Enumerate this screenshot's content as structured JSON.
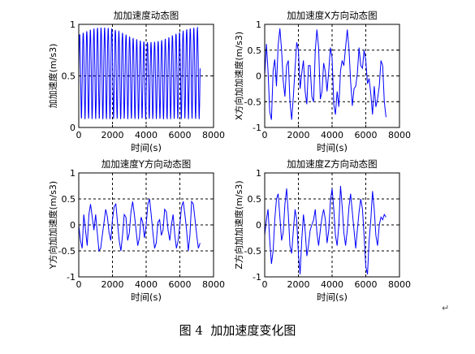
{
  "figure_caption": "图 4  加加速度变化图",
  "paragraph_mark": "↵",
  "chart_data": [
    {
      "type": "line",
      "title": "加加速度动态图",
      "xlabel": "时间(s)",
      "ylabel": "加加速度(m/s3)",
      "xlim": [
        0,
        8000
      ],
      "ylim": [
        0,
        1
      ],
      "xticks": [
        0,
        2000,
        4000,
        6000,
        8000
      ],
      "yticks": [
        0,
        0.5,
        1
      ],
      "ytick_labels": [
        "0",
        "0.5",
        "1"
      ],
      "grid": true,
      "color": "#0000ff",
      "x_range": [
        0,
        7200
      ],
      "n_points": 700,
      "approx_cycles": 34,
      "y_min": 0.08,
      "y_max": 0.97
    },
    {
      "type": "line",
      "title": "加加速度X方向动态图",
      "xlabel": "时间(s)",
      "ylabel": "X方向加加速度(m/s3)",
      "xlim": [
        0,
        8000
      ],
      "ylim": [
        -1,
        1
      ],
      "xticks": [
        0,
        2000,
        4000,
        6000,
        8000
      ],
      "yticks": [
        -1,
        -0.5,
        0,
        0.5,
        1
      ],
      "ytick_labels": [
        "-1",
        "-0.5",
        "0",
        "0.5",
        "1"
      ],
      "grid": true,
      "color": "#0000ff",
      "x": [
        0,
        100,
        200,
        300,
        400,
        500,
        600,
        700,
        800,
        900,
        1000,
        1100,
        1200,
        1300,
        1400,
        1500,
        1600,
        1700,
        1800,
        1900,
        2000,
        2100,
        2200,
        2300,
        2400,
        2500,
        2600,
        2700,
        2800,
        2900,
        3000,
        3100,
        3200,
        3300,
        3400,
        3500,
        3600,
        3700,
        3800,
        3900,
        4000,
        4100,
        4200,
        4300,
        4400,
        4500,
        4600,
        4700,
        4800,
        4900,
        5000,
        5100,
        5200,
        5300,
        5400,
        5500,
        5600,
        5700,
        5800,
        5900,
        6000,
        6100,
        6200,
        6300,
        6400,
        6500,
        6600,
        6700,
        6800,
        6900,
        7000,
        7100,
        7200
      ],
      "y": [
        0,
        0.62,
        0.1,
        -0.7,
        -0.85,
        0.1,
        0.32,
        -0.2,
        0.6,
        0.92,
        0.5,
        -0.1,
        -0.4,
        0.2,
        0.3,
        -0.5,
        -0.85,
        -0.4,
        0.15,
        0.65,
        0.5,
        -0.25,
        0.05,
        0.3,
        -0.3,
        -0.55,
        0.2,
        0.2,
        -0.4,
        -0.5,
        0.5,
        0.9,
        0.55,
        -0.45,
        -0.3,
        0.25,
        0.08,
        -0.3,
        0.1,
        0.55,
        0.35,
        -0.55,
        -0.75,
        -0.3,
        -0.6,
        0.1,
        0.3,
        0.2,
        0.55,
        0.9,
        0.52,
        -0.1,
        -0.58,
        -0.25,
        -0.2,
        0.05,
        0.55,
        0.2,
        0.15,
        0.5,
        0.3,
        -0.15,
        -0.05,
        -0.35,
        -0.75,
        -0.2,
        -0.6,
        -0.45,
        -0.2,
        0.3,
        0.2,
        -0.5,
        -0.8
      ]
    },
    {
      "type": "line",
      "title": "加加速度Y方向动态图",
      "xlabel": "时间(s)",
      "ylabel": "Y方向加加速度(m/s3)",
      "xlim": [
        0,
        8000
      ],
      "ylim": [
        -1,
        1
      ],
      "xticks": [
        0,
        2000,
        4000,
        6000,
        8000
      ],
      "yticks": [
        -1,
        -0.5,
        0,
        0.5,
        1
      ],
      "ytick_labels": [
        "-1",
        "-0.5",
        "0",
        "0.5",
        "1"
      ],
      "grid": true,
      "color": "#0000ff",
      "x": [
        0,
        100,
        200,
        300,
        400,
        500,
        600,
        700,
        800,
        900,
        1000,
        1100,
        1200,
        1300,
        1400,
        1500,
        1600,
        1700,
        1800,
        1900,
        2000,
        2100,
        2200,
        2300,
        2400,
        2500,
        2600,
        2700,
        2800,
        2900,
        3000,
        3100,
        3200,
        3300,
        3400,
        3500,
        3600,
        3700,
        3800,
        3900,
        4000,
        4100,
        4200,
        4300,
        4400,
        4500,
        4600,
        4700,
        4800,
        4900,
        5000,
        5100,
        5200,
        5300,
        5400,
        5500,
        5600,
        5700,
        5800,
        5900,
        6000,
        6100,
        6200,
        6300,
        6400,
        6500,
        6600,
        6700,
        6800,
        6900,
        7000,
        7100,
        7200
      ],
      "y": [
        0,
        -0.3,
        -0.45,
        0.2,
        -0.1,
        -0.4,
        0.2,
        0.4,
        0.15,
        -0.1,
        0.2,
        -0.15,
        -0.5,
        -0.45,
        -0.2,
        0.05,
        0.3,
        0.15,
        -0.15,
        -0.3,
        0.1,
        0.35,
        0.4,
        0.05,
        -0.3,
        -0.5,
        -0.2,
        0.2,
        0.15,
        -0.3,
        -0.15,
        0.25,
        0.45,
        0.2,
        -0.1,
        -0.4,
        -0.25,
        0.15,
        0.05,
        -0.25,
        0.0,
        0.4,
        0.5,
        0.2,
        -0.15,
        -0.45,
        -0.35,
        0.05,
        0.1,
        -0.2,
        -0.1,
        0.3,
        0.25,
        -0.1,
        -0.3,
        0.0,
        0.2,
        -0.2,
        -0.45,
        -0.3,
        0.0,
        0.35,
        0.45,
        0.2,
        -0.1,
        -0.5,
        -0.2,
        0.45,
        0.4,
        0.1,
        -0.2,
        -0.45,
        -0.35
      ]
    },
    {
      "type": "line",
      "title": "加加速度Z方向动态图",
      "xlabel": "时间(s)",
      "ylabel": "Z方向加加速度(m/s3)",
      "xlim": [
        0,
        8000
      ],
      "ylim": [
        -1,
        1
      ],
      "xticks": [
        0,
        2000,
        4000,
        6000,
        8000
      ],
      "yticks": [
        -1,
        -0.5,
        0,
        0.5,
        1
      ],
      "ytick_labels": [
        "-1",
        "-0.5",
        "0",
        "0.5",
        "1"
      ],
      "grid": true,
      "color": "#0000ff",
      "x": [
        0,
        100,
        200,
        300,
        400,
        500,
        600,
        700,
        800,
        900,
        1000,
        1100,
        1200,
        1300,
        1400,
        1500,
        1600,
        1700,
        1800,
        1900,
        2000,
        2100,
        2200,
        2300,
        2400,
        2500,
        2600,
        2700,
        2800,
        2900,
        3000,
        3100,
        3200,
        3300,
        3400,
        3500,
        3600,
        3700,
        3800,
        3900,
        4000,
        4100,
        4200,
        4300,
        4400,
        4500,
        4600,
        4700,
        4800,
        4900,
        5000,
        5100,
        5200,
        5300,
        5400,
        5500,
        5600,
        5700,
        5800,
        5900,
        6000,
        6100,
        6200,
        6300,
        6400,
        6500,
        6600,
        6700,
        6800,
        6900,
        7000,
        7100,
        7200
      ],
      "y": [
        -0.2,
        0.1,
        0.3,
        -0.3,
        -0.75,
        -0.5,
        0.1,
        0.5,
        0.6,
        0.15,
        -0.3,
        -0.15,
        0.4,
        0.7,
        0.2,
        -0.4,
        -0.55,
        -0.1,
        0.3,
        0.1,
        -0.55,
        -0.95,
        -0.3,
        0.2,
        -0.1,
        -0.6,
        -0.4,
        -0.1,
        0.0,
        0.1,
        0.3,
        -0.15,
        -0.4,
        -0.1,
        0.15,
        0.3,
        0.1,
        -0.35,
        -0.1,
        0.45,
        0.7,
        0.3,
        -0.2,
        -0.4,
        0.0,
        0.75,
        0.35,
        -0.15,
        -0.4,
        -0.1,
        0.35,
        0.6,
        0.25,
        -0.1,
        -0.45,
        -0.1,
        0.25,
        0.5,
        0.3,
        -0.2,
        -0.8,
        -0.95,
        -0.3,
        0.1,
        0.65,
        0.3,
        -0.2,
        -0.4,
        0.0,
        0.15,
        0.1,
        0.2,
        0.15
      ]
    }
  ]
}
